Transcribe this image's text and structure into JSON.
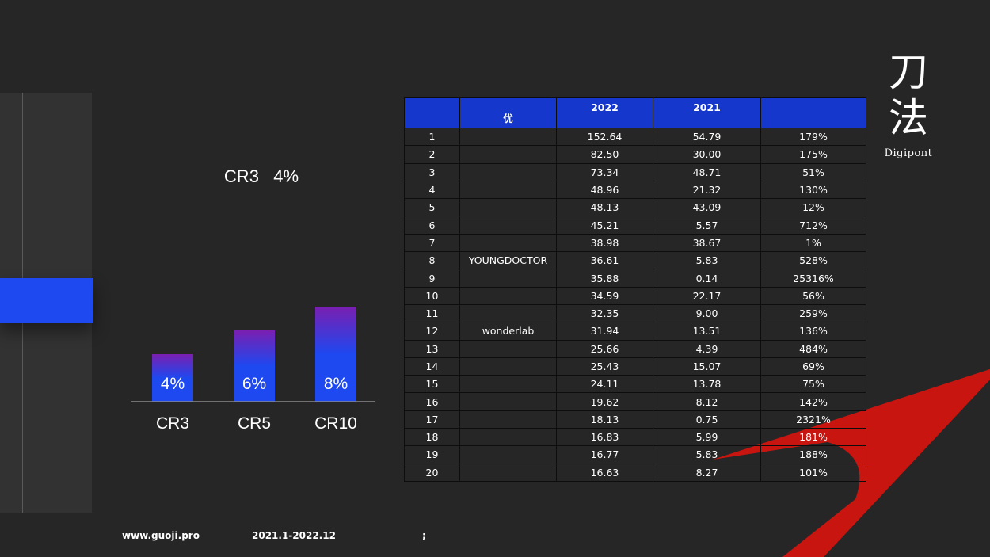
{
  "chart_data": {
    "type": "bar",
    "title": "CR3   4%",
    "categories": [
      "CR3",
      "CR5",
      "CR10"
    ],
    "values": [
      4,
      6,
      8
    ],
    "labels": [
      "4%",
      "6%",
      "8%"
    ],
    "ylim": [
      0,
      10
    ],
    "colors": {
      "top": "#7a1fb0",
      "bottom": "#1e48f0"
    }
  },
  "table": {
    "headers": [
      "",
      "优",
      "2022",
      "2021",
      ""
    ],
    "rows": [
      [
        "1",
        "",
        "152.64",
        "54.79",
        "179%"
      ],
      [
        "2",
        "",
        "82.50",
        "30.00",
        "175%"
      ],
      [
        "3",
        "",
        "73.34",
        "48.71",
        "51%"
      ],
      [
        "4",
        "",
        "48.96",
        "21.32",
        "130%"
      ],
      [
        "5",
        "",
        "48.13",
        "43.09",
        "12%"
      ],
      [
        "6",
        "",
        "45.21",
        "5.57",
        "712%"
      ],
      [
        "7",
        "",
        "38.98",
        "38.67",
        "1%"
      ],
      [
        "8",
        "YOUNGDOCTOR",
        "36.61",
        "5.83",
        "528%"
      ],
      [
        "9",
        "",
        "35.88",
        "0.14",
        "25316%"
      ],
      [
        "10",
        "",
        "34.59",
        "22.17",
        "56%"
      ],
      [
        "11",
        "",
        "32.35",
        "9.00",
        "259%"
      ],
      [
        "12",
        "wonderlab",
        "31.94",
        "13.51",
        "136%"
      ],
      [
        "13",
        "",
        "25.66",
        "4.39",
        "484%"
      ],
      [
        "14",
        "",
        "25.43",
        "15.07",
        "69%"
      ],
      [
        "15",
        "",
        "24.11",
        "13.78",
        "75%"
      ],
      [
        "16",
        "",
        "19.62",
        "8.12",
        "142%"
      ],
      [
        "17",
        "",
        "18.13",
        "0.75",
        "2321%"
      ],
      [
        "18",
        "",
        "16.83",
        "5.99",
        "181%"
      ],
      [
        "19",
        "",
        "16.77",
        "5.83",
        "188%"
      ],
      [
        "20",
        "",
        "16.63",
        "8.27",
        "101%"
      ]
    ]
  },
  "logo": {
    "cn_line1": "刀",
    "cn_line2": "法",
    "en": "Digipont"
  },
  "footer": {
    "website": "www.guoji.pro",
    "period": "2021.1-2022.12",
    "note": ";"
  },
  "colors": {
    "background": "#262626",
    "header_blue": "#1537cc",
    "accent_blue": "#1e48f0",
    "accent_red": "#c8150f"
  }
}
